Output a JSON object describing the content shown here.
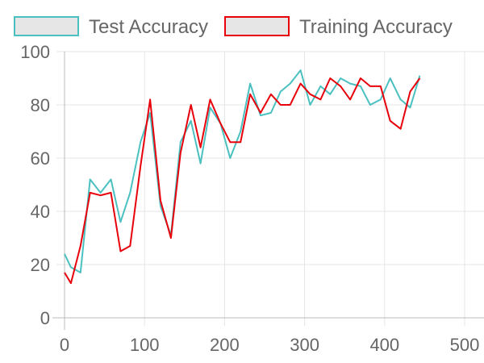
{
  "chart_data": {
    "type": "line",
    "title": "",
    "xlabel": "",
    "ylabel": "",
    "xlim": [
      0,
      520
    ],
    "ylim": [
      0,
      100
    ],
    "x_ticks": [
      0,
      100,
      200,
      300,
      400,
      500
    ],
    "y_ticks": [
      0,
      20,
      40,
      60,
      80,
      100
    ],
    "grid": true,
    "legend_position": "top",
    "series": [
      {
        "name": "Test Accuracy",
        "color": "#4bc0c0",
        "fill": "#e6e6e6",
        "points": [
          [
            0,
            24
          ],
          [
            8,
            19
          ],
          [
            20,
            17
          ],
          [
            32,
            52
          ],
          [
            45,
            47
          ],
          [
            58,
            52
          ],
          [
            70,
            36
          ],
          [
            82,
            47
          ],
          [
            95,
            66
          ],
          [
            107,
            77
          ],
          [
            120,
            42
          ],
          [
            133,
            31
          ],
          [
            145,
            66
          ],
          [
            158,
            74
          ],
          [
            170,
            58
          ],
          [
            182,
            79
          ],
          [
            195,
            73
          ],
          [
            207,
            60
          ],
          [
            220,
            70
          ],
          [
            232,
            88
          ],
          [
            245,
            76
          ],
          [
            258,
            77
          ],
          [
            270,
            85
          ],
          [
            282,
            88
          ],
          [
            295,
            93
          ],
          [
            307,
            80
          ],
          [
            320,
            87
          ],
          [
            332,
            84
          ],
          [
            345,
            90
          ],
          [
            357,
            88
          ],
          [
            370,
            87
          ],
          [
            382,
            80
          ],
          [
            395,
            82
          ],
          [
            407,
            90
          ],
          [
            420,
            82
          ],
          [
            432,
            79
          ],
          [
            444,
            91
          ]
        ]
      },
      {
        "name": "Training Accuracy",
        "color": "#e8000b",
        "fill": "#e6e6e6",
        "points": [
          [
            0,
            17
          ],
          [
            8,
            13
          ],
          [
            20,
            27
          ],
          [
            32,
            47
          ],
          [
            45,
            46
          ],
          [
            58,
            47
          ],
          [
            70,
            25
          ],
          [
            82,
            27
          ],
          [
            95,
            57
          ],
          [
            107,
            82
          ],
          [
            120,
            44
          ],
          [
            133,
            30
          ],
          [
            145,
            62
          ],
          [
            158,
            80
          ],
          [
            170,
            64
          ],
          [
            182,
            82
          ],
          [
            195,
            73
          ],
          [
            207,
            66
          ],
          [
            220,
            66
          ],
          [
            232,
            84
          ],
          [
            245,
            77
          ],
          [
            258,
            84
          ],
          [
            270,
            80
          ],
          [
            282,
            80
          ],
          [
            295,
            88
          ],
          [
            307,
            84
          ],
          [
            320,
            82
          ],
          [
            332,
            90
          ],
          [
            345,
            87
          ],
          [
            357,
            82
          ],
          [
            370,
            90
          ],
          [
            382,
            87
          ],
          [
            395,
            87
          ],
          [
            407,
            74
          ],
          [
            420,
            71
          ],
          [
            432,
            85
          ],
          [
            444,
            90
          ]
        ]
      }
    ]
  }
}
